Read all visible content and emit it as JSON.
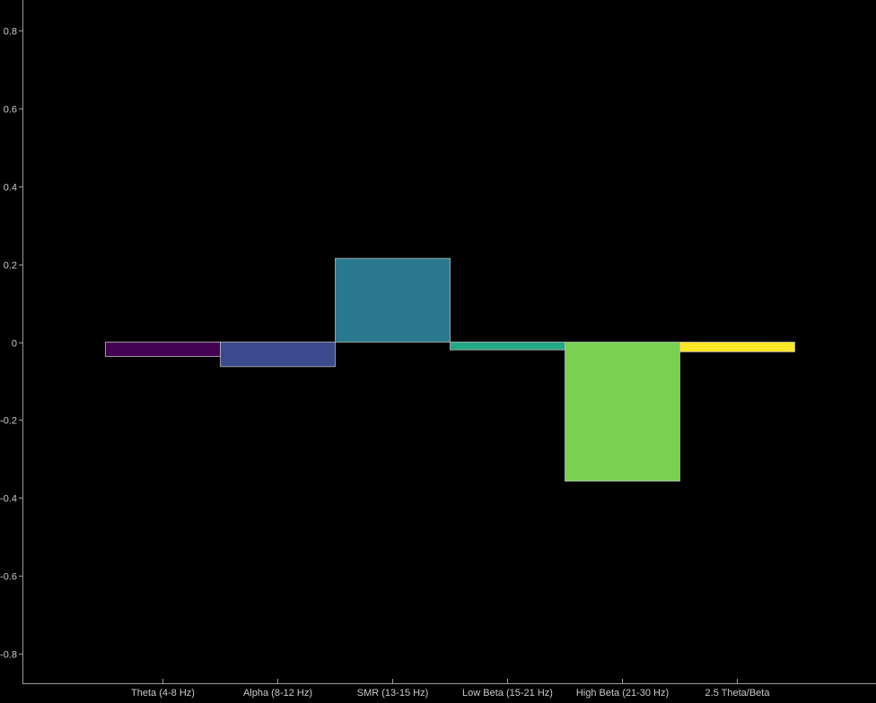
{
  "chart_data": {
    "type": "bar",
    "title": "",
    "xlabel": "",
    "ylabel": "",
    "categories": [
      "Theta (4-8 Hz)",
      "Alpha (8-12 Hz)",
      "SMR (13-15 Hz)",
      "Low Beta (15-21 Hz)",
      "High Beta (21-30 Hz)",
      "2.5 Theta/Beta"
    ],
    "values": [
      -0.037,
      -0.063,
      0.215,
      -0.02,
      -0.357,
      -0.025
    ],
    "colors": [
      "#440154",
      "#3b4a8c",
      "#2a788e",
      "#22a884",
      "#7ad151",
      "#fde725"
    ],
    "ylim": [
      -0.88,
      0.88
    ],
    "yticks": [
      0.8,
      0.6,
      0.4,
      0.2,
      0,
      -0.2,
      -0.4,
      -0.6,
      -0.8
    ],
    "ytick_labels": [
      "0.8",
      "0.6",
      "0.4",
      "0.2",
      "0",
      "-0.2",
      "-0.4",
      "-0.6",
      "-0.8"
    ],
    "grid": false,
    "legend": "none",
    "background": "#000000",
    "axis_color": "#9a9a9a",
    "bar_edge_color": "#b8b8b8"
  }
}
